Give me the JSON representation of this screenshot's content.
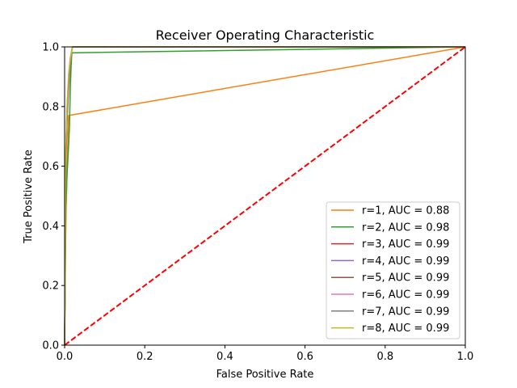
{
  "chart_data": {
    "type": "line",
    "title": "Receiver Operating Characteristic",
    "xlabel": "False Positive Rate",
    "ylabel": "True Positive Rate",
    "xlim": [
      0,
      1
    ],
    "ylim": [
      0,
      1
    ],
    "xticks": [
      "0.0",
      "0.2",
      "0.4",
      "0.6",
      "0.8",
      "1.0"
    ],
    "yticks": [
      "0.0",
      "0.2",
      "0.4",
      "0.6",
      "0.8",
      "1.0"
    ],
    "grid": false,
    "legend_position": "lower-right",
    "series": [
      {
        "name": "r=1, AUC = 0.88",
        "color": "#ff7f0e",
        "x": [
          0,
          0.002,
          0.004,
          0.006,
          0.008,
          0.01,
          1.0
        ],
        "y": [
          0,
          0.3,
          0.47,
          0.58,
          0.68,
          0.77,
          1.0
        ]
      },
      {
        "name": "r=2, AUC = 0.98",
        "color": "#2ca02c",
        "x": [
          0,
          0.003,
          0.006,
          0.008,
          0.01,
          0.012,
          0.014,
          0.016,
          0.018,
          1.0
        ],
        "y": [
          0,
          0.45,
          0.57,
          0.62,
          0.67,
          0.73,
          0.85,
          0.93,
          0.98,
          1.0
        ]
      },
      {
        "name": "r=3, AUC = 0.99",
        "color": "#d62728",
        "x": [
          0,
          0.003,
          0.006,
          0.01,
          0.014,
          0.018,
          0.02,
          1.0
        ],
        "y": [
          0,
          0.6,
          0.75,
          0.86,
          0.94,
          0.99,
          1.0,
          1.0
        ]
      },
      {
        "name": "r=4, AUC = 0.99",
        "color": "#9467bd",
        "x": [
          0,
          0.003,
          0.006,
          0.01,
          0.014,
          0.018,
          0.02,
          1.0
        ],
        "y": [
          0,
          0.62,
          0.76,
          0.87,
          0.94,
          0.99,
          1.0,
          1.0
        ]
      },
      {
        "name": "r=5, AUC = 0.99",
        "color": "#8c564b",
        "x": [
          0,
          0.003,
          0.006,
          0.01,
          0.014,
          0.018,
          0.02,
          1.0
        ],
        "y": [
          0,
          0.63,
          0.77,
          0.88,
          0.95,
          0.99,
          1.0,
          1.0
        ]
      },
      {
        "name": "r=6, AUC = 0.99",
        "color": "#e377c2",
        "x": [
          0,
          0.003,
          0.006,
          0.01,
          0.014,
          0.018,
          0.02,
          1.0
        ],
        "y": [
          0,
          0.64,
          0.78,
          0.89,
          0.95,
          0.99,
          1.0,
          1.0
        ]
      },
      {
        "name": "r=7, AUC = 0.99",
        "color": "#7f7f7f",
        "x": [
          0,
          0.003,
          0.006,
          0.01,
          0.014,
          0.018,
          0.02,
          1.0
        ],
        "y": [
          0,
          0.65,
          0.79,
          0.9,
          0.96,
          0.99,
          1.0,
          1.0
        ]
      },
      {
        "name": "r=8, AUC = 0.99",
        "color": "#bcbd22",
        "x": [
          0,
          0.003,
          0.006,
          0.01,
          0.014,
          0.018,
          0.02,
          1.0
        ],
        "y": [
          0,
          0.66,
          0.8,
          0.91,
          0.96,
          0.99,
          1.0,
          1.0
        ]
      }
    ],
    "reference_line": {
      "x": [
        0,
        1
      ],
      "y": [
        0,
        1
      ],
      "color": "#ff0000",
      "style": "dashed"
    }
  }
}
